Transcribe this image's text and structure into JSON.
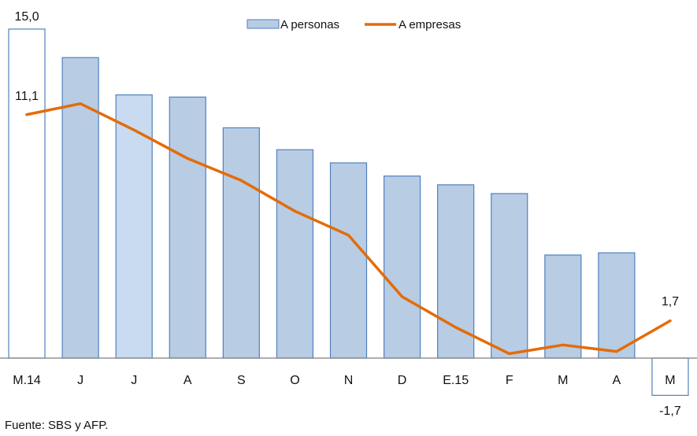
{
  "chart_data": {
    "type": "bar",
    "categories": [
      "M.14",
      "J",
      "J",
      "A",
      "S",
      "O",
      "N",
      "D",
      "E.15",
      "F",
      "M",
      "A",
      "M"
    ],
    "series": [
      {
        "name": "A personas",
        "type": "bar",
        "values": [
          15.0,
          13.7,
          12.0,
          11.9,
          10.5,
          9.5,
          8.9,
          8.3,
          7.9,
          7.5,
          4.7,
          4.8,
          -1.7
        ]
      },
      {
        "name": "A empresas",
        "type": "line",
        "values": [
          11.1,
          11.6,
          10.4,
          9.1,
          8.1,
          6.7,
          5.6,
          2.8,
          1.4,
          0.2,
          0.6,
          0.3,
          1.7
        ]
      }
    ],
    "data_labels": [
      {
        "text": "15,0"
      },
      {
        "text": "11,1"
      },
      {
        "text": "1,7"
      },
      {
        "text": "-1,7"
      }
    ],
    "ylim": [
      -1.9,
      15.6
    ],
    "grid": false,
    "legend_position": "top",
    "colors": {
      "bar_fill": "#b8cce4",
      "bar_fill_highlight": "#c9dbf0",
      "bar_fill_first": "#ffffff",
      "bar_stroke": "#4f81bd",
      "line": "#e36c09",
      "axis": "#7f7f7f"
    }
  },
  "footer": {
    "source": "Fuente: SBS y AFP."
  }
}
